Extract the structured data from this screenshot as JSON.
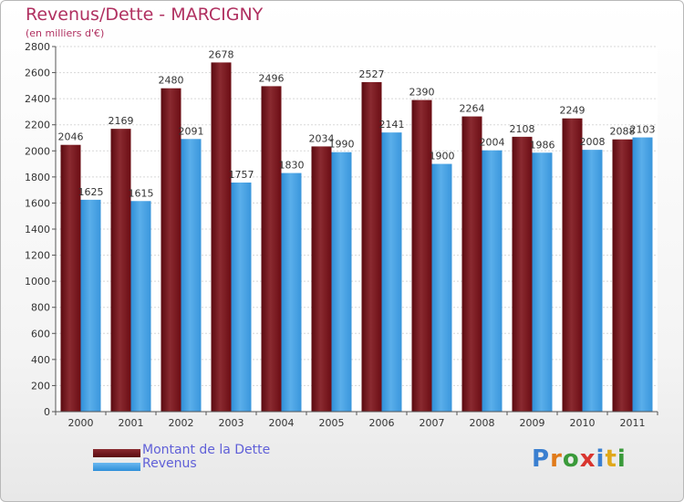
{
  "title": "Revenus/Dette - MARCIGNY",
  "subtitle": "(en milliers d'€)",
  "brand": "Proxiti",
  "colors": {
    "dette": "#6b0d14",
    "dette_light": "#9c3a3f",
    "revenus": "#2f8fd8",
    "revenus_light": "#6ab8f0",
    "title": "#b03060",
    "legend_text": "#6060d8"
  },
  "chart_data": {
    "type": "bar",
    "title": "Revenus/Dette - MARCIGNY",
    "ylabel": "(en milliers d'€)",
    "xlabel": "",
    "categories": [
      "2000",
      "2001",
      "2002",
      "2003",
      "2004",
      "2005",
      "2006",
      "2007",
      "2008",
      "2009",
      "2010",
      "2011"
    ],
    "series": [
      {
        "name": "Montant de la Dette",
        "values": [
          2046,
          2169,
          2480,
          2678,
          2496,
          2034,
          2527,
          2390,
          2264,
          2108,
          2249,
          2088
        ]
      },
      {
        "name": "Revenus",
        "values": [
          1625,
          1615,
          2091,
          1757,
          1830,
          1990,
          2141,
          1900,
          2004,
          1986,
          2008,
          2103
        ]
      }
    ],
    "ylim": [
      0,
      2800
    ],
    "yticks": [
      0,
      200,
      400,
      600,
      800,
      1000,
      1200,
      1400,
      1600,
      1800,
      2000,
      2200,
      2400,
      2600,
      2800
    ],
    "grid": true,
    "legend": "bottom-left"
  }
}
